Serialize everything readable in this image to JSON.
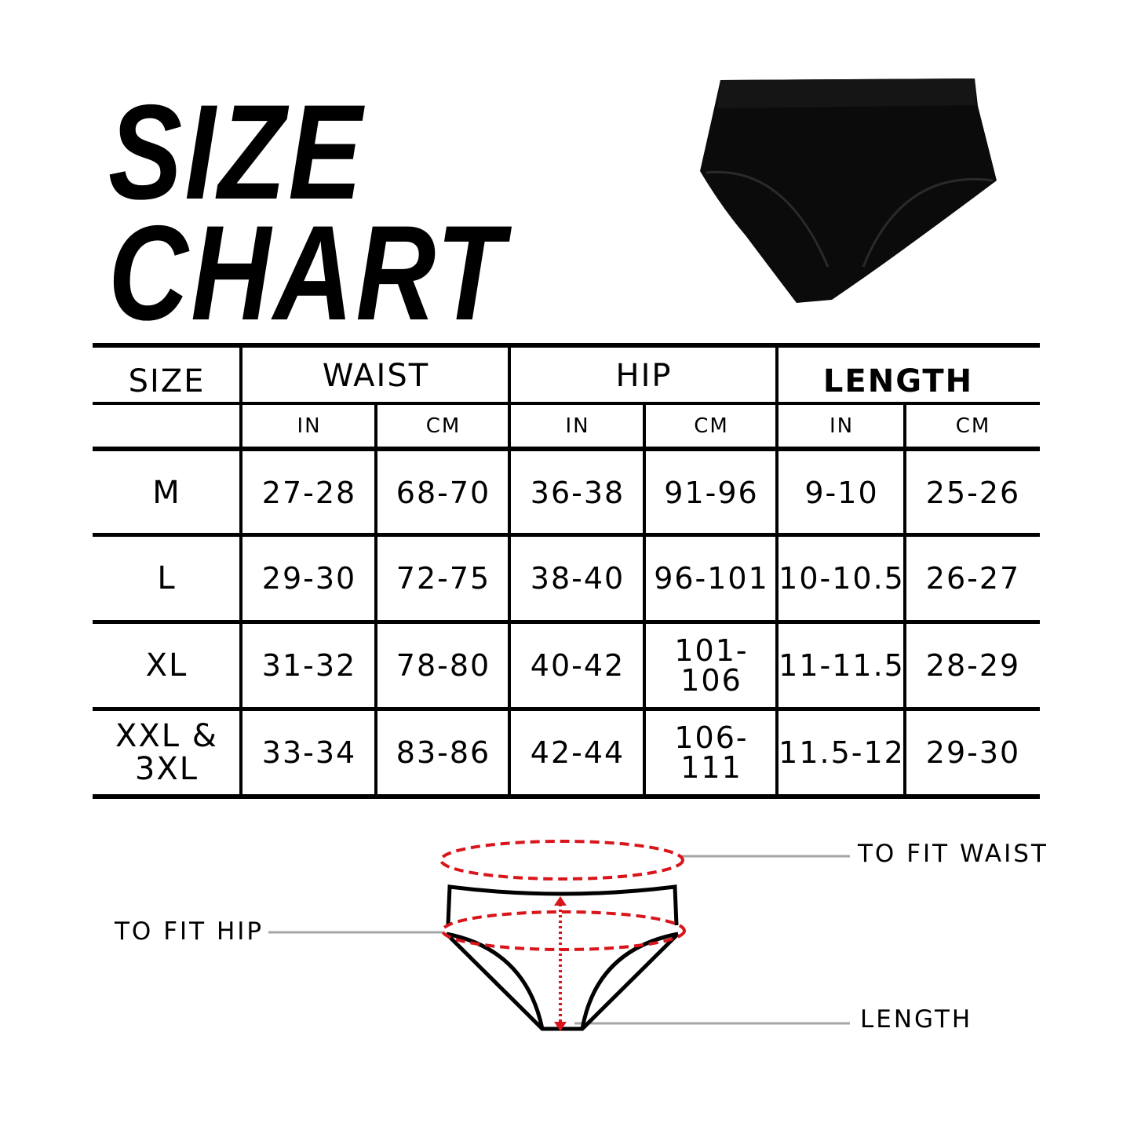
{
  "title": {
    "line1": "SIZE",
    "line2": "CHART"
  },
  "table": {
    "headers": {
      "size": "SIZE",
      "waist": "WAIST",
      "hip": "HIP",
      "length": "LENGTH"
    },
    "units": [
      "IN",
      "CM",
      "IN",
      "CM",
      "IN",
      "CM"
    ],
    "rows": [
      {
        "size": "M",
        "values": [
          "27-28",
          "68-70",
          "36-38",
          "91-96",
          "9-10",
          "25-26"
        ]
      },
      {
        "size": "L",
        "values": [
          "29-30",
          "72-75",
          "38-40",
          "96-101",
          "10-10.5",
          "26-27"
        ]
      },
      {
        "size": "XL",
        "values": [
          "31-32",
          "78-80",
          "40-42",
          "101-106",
          "11-11.5",
          "28-29"
        ]
      },
      {
        "size": "XXL & 3XL",
        "values": [
          "33-34",
          "83-86",
          "42-44",
          "106-111",
          "11.5-12",
          "29-30"
        ]
      }
    ]
  },
  "diagram": {
    "waist_label": "TO FIT WAIST",
    "hip_label": "TO FIT HIP",
    "length_label": "LENGTH",
    "accent_color": "#d9151b",
    "leader_color": "#a6a6a6"
  }
}
